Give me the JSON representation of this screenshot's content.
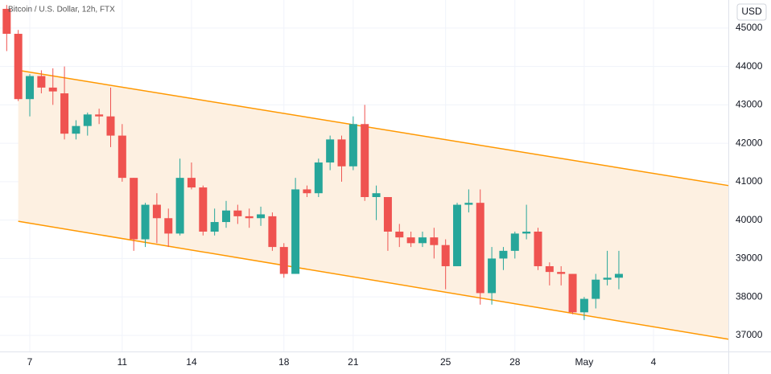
{
  "chart_data": {
    "type": "candlestick",
    "title": "Bitcoin / U.S. Dollar, 12h, FTX",
    "y_axis_label": "USD",
    "x": [
      6,
      6.5,
      7,
      7.5,
      8,
      8.5,
      9,
      9.5,
      10,
      10.5,
      11,
      11.5,
      12,
      12.5,
      13,
      13.5,
      14,
      14.5,
      15,
      15.5,
      16,
      16.5,
      17,
      17.5,
      18,
      18.5,
      19,
      19.5,
      20,
      20.5,
      21,
      21.5,
      22,
      22.5,
      23,
      23.5,
      24,
      24.5,
      25,
      25.5,
      26,
      26.5,
      27,
      27.5,
      28,
      28.5,
      29,
      29.5,
      30,
      30.5,
      31,
      31.5,
      32,
      32.5
    ],
    "open": [
      45500,
      44850,
      43150,
      43750,
      43450,
      43300,
      42250,
      42450,
      42750,
      42700,
      42200,
      41100,
      39500,
      40400,
      40050,
      39650,
      41100,
      40850,
      39700,
      39950,
      40250,
      40100,
      40050,
      40100,
      39300,
      38600,
      40800,
      40700,
      41500,
      42100,
      41400,
      42500,
      40600,
      40600,
      39700,
      39550,
      39400,
      39550,
      39350,
      38800,
      40400,
      40450,
      38100,
      39000,
      39200,
      39650,
      39700,
      38800,
      38650,
      38600,
      37600,
      37950,
      38450,
      38500
    ],
    "high": [
      45600,
      44950,
      43800,
      43900,
      43950,
      44000,
      42600,
      42800,
      42900,
      43450,
      42500,
      41100,
      40450,
      40700,
      40300,
      41600,
      41500,
      40900,
      40300,
      40500,
      40400,
      40300,
      40350,
      40200,
      39400,
      41100,
      40900,
      41600,
      42200,
      42200,
      42700,
      43000,
      40900,
      40600,
      39900,
      39700,
      39700,
      39800,
      39500,
      40450,
      40800,
      40800,
      39300,
      39300,
      39700,
      40400,
      39800,
      38900,
      38800,
      38600,
      38000,
      38600,
      39200,
      39200
    ],
    "low": [
      44400,
      43100,
      42700,
      43300,
      43000,
      42100,
      42100,
      42200,
      42500,
      41900,
      41000,
      39200,
      39300,
      39400,
      39300,
      39600,
      40800,
      39600,
      39600,
      39800,
      39900,
      39800,
      39850,
      39200,
      38500,
      38600,
      40600,
      40600,
      41300,
      41000,
      41300,
      40500,
      40000,
      39200,
      39300,
      39300,
      39300,
      39000,
      38200,
      38800,
      40200,
      37800,
      37800,
      38700,
      39000,
      39500,
      38700,
      38300,
      38300,
      37550,
      37400,
      37700,
      38300,
      38200
    ],
    "close": [
      44850,
      43150,
      43750,
      43450,
      43350,
      42250,
      42450,
      42750,
      42700,
      42200,
      41100,
      39500,
      40400,
      40050,
      39650,
      41100,
      40850,
      39700,
      39950,
      40250,
      40100,
      40050,
      40150,
      39300,
      38600,
      40800,
      40700,
      41500,
      42100,
      41400,
      42500,
      40600,
      40700,
      39700,
      39550,
      39400,
      39550,
      39350,
      38800,
      40400,
      40450,
      38100,
      39000,
      39200,
      39650,
      39700,
      38800,
      38650,
      38600,
      37600,
      37950,
      38450,
      38500,
      38600
    ],
    "up_color": "#26a69a",
    "down_color": "#ef5350",
    "channel": {
      "x": [
        6.5,
        37.24
      ],
      "upper": [
        43900,
        40900
      ],
      "lower": [
        39970,
        36900
      ],
      "color": "#ff9800",
      "fill": "#fdf0e1"
    },
    "xlim": [
      5.71,
      37.24
    ],
    "ylim": [
      36580,
      45730
    ],
    "xticks": [
      7,
      11,
      14,
      18,
      21,
      25,
      28,
      {
        "value": 31,
        "label": "May"
      },
      {
        "value": 34,
        "label": "4"
      }
    ],
    "yticks": [
      37000,
      38000,
      39000,
      40000,
      41000,
      42000,
      43000,
      44000,
      45000
    ],
    "grid": true
  }
}
